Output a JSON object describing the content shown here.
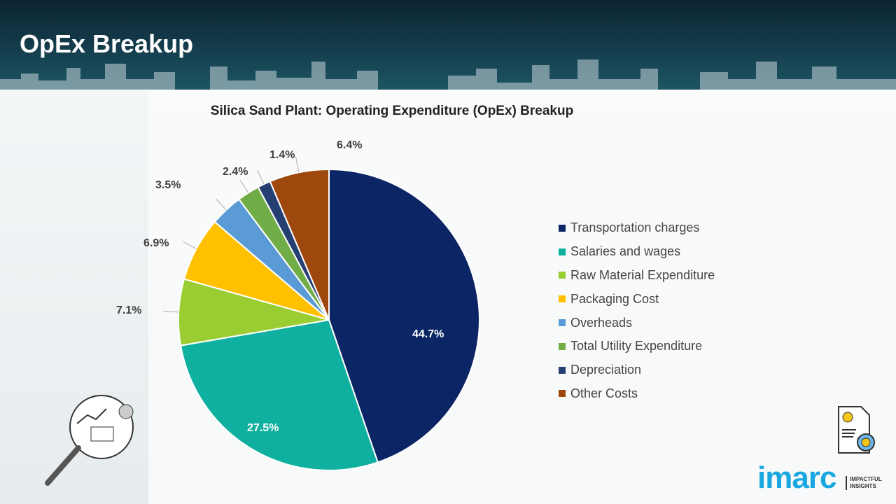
{
  "header": {
    "title": "OpEx Breakup"
  },
  "brand": {
    "logo": "imarc",
    "tagline_1": "IMPACTFUL",
    "tagline_2": "INSIGHTS"
  },
  "chart_data": {
    "type": "pie",
    "title": "Silica Sand Plant: Operating Expenditure (OpEx) Breakup",
    "legend_position": "right",
    "categories": [
      "Transportation charges",
      "Salaries and wages",
      "Raw Material Expenditure",
      "Packaging Cost",
      "Overheads",
      "Total Utility Expenditure",
      "Depreciation",
      "Other Costs"
    ],
    "values": [
      44.7,
      27.5,
      7.1,
      6.9,
      3.5,
      2.4,
      1.4,
      6.4
    ],
    "data_labels": [
      "44.7%",
      "27.5%",
      "7.1%",
      "6.9%",
      "3.5%",
      "2.4%",
      "1.4%",
      "6.4%"
    ],
    "colors": [
      "#0b2565",
      "#0fb0a0",
      "#9acd32",
      "#ffc000",
      "#5b9bd5",
      "#70ad47",
      "#263f73",
      "#9e480e"
    ]
  }
}
